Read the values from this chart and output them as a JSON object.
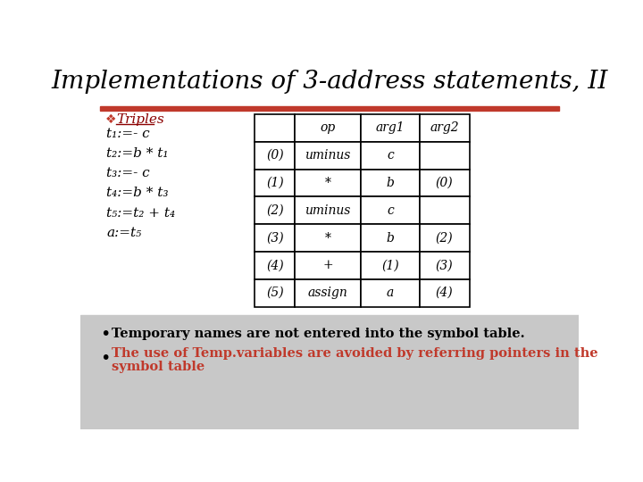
{
  "title": "Implementations of 3-address statements, II",
  "title_fontsize": 20,
  "title_color": "#000000",
  "bg_color": "#ffffff",
  "red_bar_color": "#c0392b",
  "left_panel_header": "Triples",
  "left_panel_lines": [
    "t₁:=- c",
    "t₂:=b * t₁",
    "t₃:=- c",
    "t₄:=b * t₃",
    "t₅:=t₂ + t₄",
    "a:=t₅"
  ],
  "table_headers": [
    "",
    "op",
    "arg1",
    "arg2"
  ],
  "table_rows": [
    [
      "(0)",
      "uminus",
      "c",
      ""
    ],
    [
      "(1)",
      "*",
      "b",
      "(0)"
    ],
    [
      "(2)",
      "uminus",
      "c",
      ""
    ],
    [
      "(3)",
      "*",
      "b",
      "(2)"
    ],
    [
      "(4)",
      "+",
      "(1)",
      "(3)"
    ],
    [
      "(5)",
      "assign",
      "a",
      "(4)"
    ]
  ],
  "bullet1": "Temporary names are not entered into the symbol table.",
  "bullet2_line1": "The use of Temp.variables are avoided by referring pointers in the",
  "bullet2_line2": "symbol table",
  "bullet1_color": "#000000",
  "bullet2_color": "#c0392b",
  "bottom_bg_color": "#c8c8c8"
}
